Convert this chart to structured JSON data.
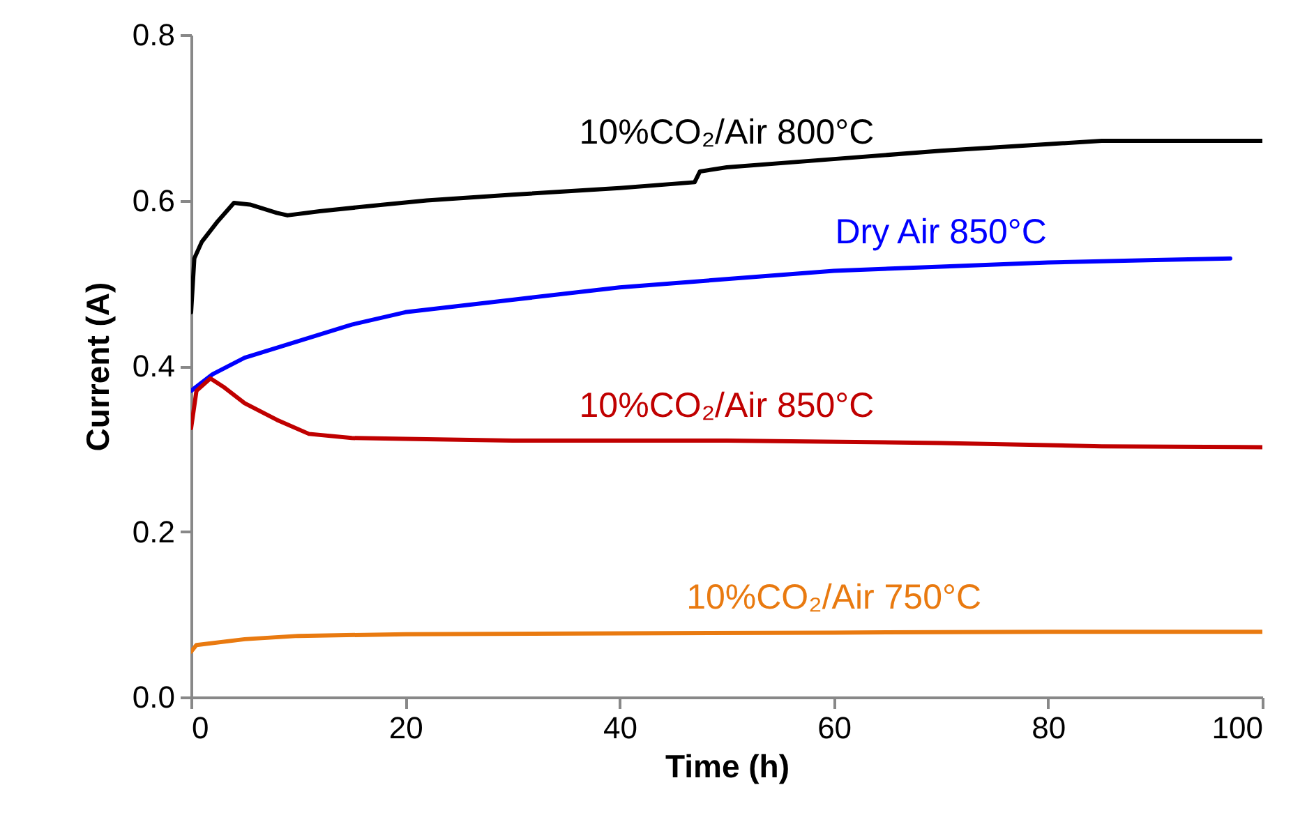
{
  "chart_data": {
    "type": "line",
    "xlabel": "Time (h)",
    "ylabel": "Current (A)",
    "xlim": [
      0,
      100
    ],
    "ylim": [
      0,
      0.8
    ],
    "xticks": [
      0,
      20,
      40,
      60,
      80,
      100
    ],
    "yticks": [
      {
        "value": 0,
        "label": "0.0"
      },
      0.2,
      0.4,
      0.6,
      0.8
    ],
    "grid": false,
    "legend": false,
    "marker": "none",
    "line_style": "solid",
    "series": [
      {
        "name": "10%CO₂/Air 800°C",
        "color": "#000000",
        "x": [
          0,
          0.3,
          1,
          2.5,
          4,
          5.5,
          8,
          9,
          12,
          18,
          22,
          30,
          40,
          47,
          47.5,
          50,
          60,
          70,
          80,
          85,
          100
        ],
        "values": [
          0.465,
          0.53,
          0.55,
          0.575,
          0.597,
          0.595,
          0.585,
          0.582,
          0.587,
          0.595,
          0.6,
          0.607,
          0.615,
          0.622,
          0.635,
          0.64,
          0.65,
          0.66,
          0.668,
          0.672,
          0.672
        ]
      },
      {
        "name": "Dry Air 850°C",
        "color": "#0000ff",
        "x": [
          0,
          2,
          5,
          10,
          15,
          20,
          30,
          40,
          50,
          60,
          70,
          80,
          90,
          97
        ],
        "values": [
          0.37,
          0.39,
          0.41,
          0.43,
          0.45,
          0.465,
          0.48,
          0.495,
          0.505,
          0.515,
          0.52,
          0.525,
          0.528,
          0.53
        ]
      },
      {
        "name": "10%CO₂/Air 850°C",
        "color": "#c00000",
        "x": [
          0,
          0.5,
          1.8,
          3,
          5,
          8,
          11,
          15,
          20,
          30,
          50,
          70,
          85,
          100
        ],
        "values": [
          0.325,
          0.37,
          0.385,
          0.375,
          0.355,
          0.335,
          0.318,
          0.313,
          0.312,
          0.31,
          0.31,
          0.307,
          0.303,
          0.302
        ]
      },
      {
        "name": "10%CO₂/Air 750°C",
        "color": "#e97a10",
        "x": [
          0,
          0.5,
          5,
          10,
          20,
          40,
          60,
          80,
          100
        ],
        "values": [
          0.055,
          0.063,
          0.07,
          0.074,
          0.076,
          0.077,
          0.078,
          0.079,
          0.079
        ]
      }
    ]
  }
}
